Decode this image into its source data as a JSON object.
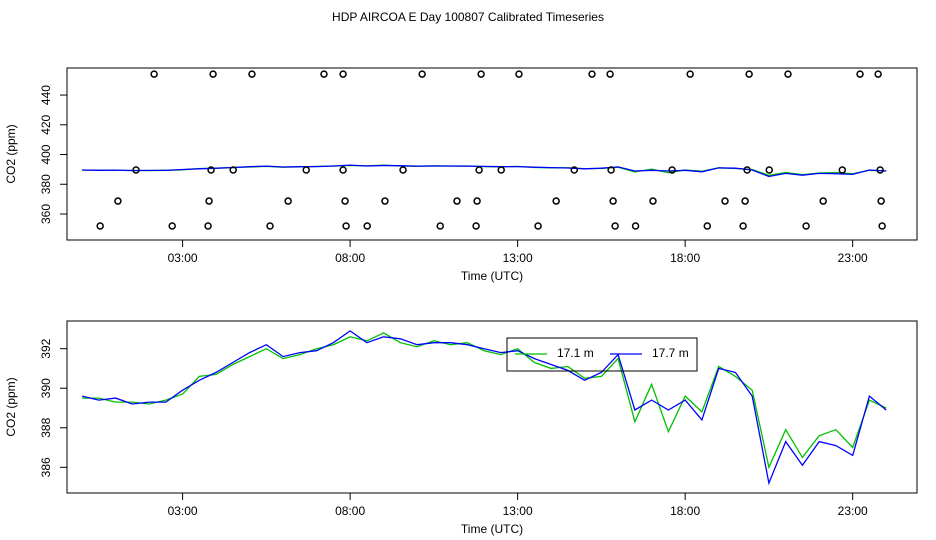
{
  "title": "HDP AIRCOA E  Day 100807  Calibrated Timeseries",
  "chart_data": [
    {
      "type": "line",
      "xlabel": "Time (UTC)",
      "ylabel": "CO2 (ppm)",
      "xlim": [
        -0.45,
        24.92
      ],
      "xticks": [
        {
          "value": 3,
          "label": "03:00"
        },
        {
          "value": 8,
          "label": "08:00"
        },
        {
          "value": 13,
          "label": "13:00"
        },
        {
          "value": 18,
          "label": "18:00"
        },
        {
          "value": 23,
          "label": "23:00"
        }
      ],
      "ylim": [
        342.5,
        458.2
      ],
      "yticks": [
        360,
        380,
        400,
        420,
        440
      ],
      "x": [
        0,
        0.5,
        1,
        1.5,
        2,
        2.5,
        3,
        3.5,
        4,
        4.5,
        5,
        5.5,
        6,
        6.5,
        7,
        7.5,
        8,
        8.5,
        9,
        9.5,
        10,
        10.5,
        11,
        11.5,
        12,
        12.5,
        13,
        13.5,
        14,
        14.5,
        15,
        15.5,
        16,
        16.5,
        17,
        17.5,
        18,
        18.5,
        19,
        19.5,
        20,
        20.5,
        21,
        21.5,
        22,
        22.5,
        23,
        23.5,
        24
      ],
      "series": [
        {
          "color": "#00c000",
          "values": [
            389.5,
            389.5,
            389.3,
            389.3,
            389.2,
            389.4,
            389.7,
            390.6,
            390.7,
            391.2,
            391.6,
            392.0,
            391.5,
            391.7,
            392.0,
            392.2,
            392.6,
            392.4,
            392.8,
            392.3,
            392.1,
            392.4,
            392.2,
            392.3,
            391.9,
            391.7,
            392.0,
            391.3,
            391.0,
            391.1,
            390.5,
            390.6,
            391.5,
            388.3,
            390.2,
            387.8,
            389.6,
            388.8,
            391.1,
            390.6,
            389.9,
            386.0,
            387.9,
            386.5,
            387.6,
            387.9,
            387.0,
            389.4,
            389.0
          ]
        },
        {
          "color": "#0000ff",
          "values": [
            389.6,
            389.4,
            389.5,
            389.2,
            389.3,
            389.3,
            389.9,
            390.4,
            390.8,
            391.3,
            391.8,
            392.2,
            391.6,
            391.8,
            391.9,
            392.3,
            392.9,
            392.3,
            392.6,
            392.5,
            392.2,
            392.3,
            392.3,
            392.2,
            392.0,
            391.8,
            391.9,
            391.5,
            391.2,
            390.9,
            390.4,
            390.8,
            391.7,
            388.9,
            389.4,
            388.9,
            389.4,
            388.4,
            391.0,
            390.8,
            389.6,
            385.2,
            387.3,
            386.1,
            387.3,
            387.1,
            386.6,
            389.6,
            388.9
          ]
        }
      ],
      "points": {
        "color": "#000000",
        "x": [
          2.15,
          3.91,
          5.07,
          7.22,
          7.79,
          10.15,
          11.91,
          13.04,
          15.22,
          15.76,
          18.15,
          19.91,
          21.07,
          23.22,
          23.76,
          1.61,
          3.85,
          4.51,
          6.69,
          7.79,
          9.58,
          11.85,
          12.51,
          14.69,
          15.79,
          17.61,
          19.85,
          20.51,
          22.69,
          23.82,
          1.07,
          3.79,
          6.15,
          7.85,
          9.04,
          11.19,
          11.79,
          14.15,
          15.85,
          17.04,
          19.19,
          19.79,
          22.12,
          23.85,
          0.54,
          2.69,
          3.76,
          5.61,
          7.88,
          8.51,
          10.69,
          11.76,
          13.61,
          15.91,
          16.52,
          18.66,
          19.73,
          21.61,
          23.88
        ],
        "values": [
          454.1,
          454.1,
          454.1,
          454.1,
          454.1,
          454.1,
          454.1,
          454.1,
          454.1,
          454.1,
          454.1,
          454.1,
          454.1,
          454.1,
          454.1,
          389.6,
          389.6,
          389.6,
          389.6,
          389.6,
          389.6,
          389.6,
          389.6,
          389.6,
          389.6,
          389.6,
          389.6,
          389.6,
          389.6,
          389.6,
          368.7,
          368.7,
          368.7,
          368.7,
          368.7,
          368.7,
          368.7,
          368.7,
          368.7,
          368.7,
          368.7,
          368.7,
          368.7,
          368.7,
          351.9,
          351.9,
          351.9,
          351.9,
          351.9,
          351.9,
          351.9,
          351.9,
          351.9,
          351.9,
          351.9,
          351.9,
          351.9,
          351.9,
          351.9
        ]
      }
    },
    {
      "type": "line",
      "xlabel": "Time (UTC)",
      "ylabel": "CO2 (ppm)",
      "xlim": [
        -0.45,
        24.92
      ],
      "xticks": [
        {
          "value": 3,
          "label": "03:00"
        },
        {
          "value": 8,
          "label": "08:00"
        },
        {
          "value": 13,
          "label": "13:00"
        },
        {
          "value": 18,
          "label": "18:00"
        },
        {
          "value": 23,
          "label": "23:00"
        }
      ],
      "ylim": [
        384.7,
        393.4
      ],
      "yticks": [
        386,
        388,
        390,
        392
      ],
      "legend": "top",
      "x": [
        0,
        0.5,
        1,
        1.5,
        2,
        2.5,
        3,
        3.5,
        4,
        4.5,
        5,
        5.5,
        6,
        6.5,
        7,
        7.5,
        8,
        8.5,
        9,
        9.5,
        10,
        10.5,
        11,
        11.5,
        12,
        12.5,
        13,
        13.5,
        14,
        14.5,
        15,
        15.5,
        16,
        16.5,
        17,
        17.5,
        18,
        18.5,
        19,
        19.5,
        20,
        20.5,
        21,
        21.5,
        22,
        22.5,
        23,
        23.5,
        24
      ],
      "series": [
        {
          "name": "17.1 m",
          "color": "#00c000",
          "values": [
            389.5,
            389.5,
            389.3,
            389.3,
            389.2,
            389.4,
            389.7,
            390.6,
            390.7,
            391.2,
            391.6,
            392.0,
            391.5,
            391.7,
            392.0,
            392.2,
            392.6,
            392.4,
            392.8,
            392.3,
            392.1,
            392.4,
            392.2,
            392.3,
            391.9,
            391.7,
            392.0,
            391.3,
            391.0,
            391.1,
            390.5,
            390.6,
            391.5,
            388.3,
            390.2,
            387.8,
            389.6,
            388.8,
            391.1,
            390.6,
            389.9,
            386.0,
            387.9,
            386.5,
            387.6,
            387.9,
            387.0,
            389.4,
            389.0
          ]
        },
        {
          "name": "17.7 m",
          "color": "#0000ff",
          "values": [
            389.6,
            389.4,
            389.5,
            389.2,
            389.3,
            389.3,
            389.9,
            390.4,
            390.8,
            391.3,
            391.8,
            392.2,
            391.6,
            391.8,
            391.9,
            392.3,
            392.9,
            392.3,
            392.6,
            392.5,
            392.2,
            392.3,
            392.3,
            392.2,
            392.0,
            391.8,
            391.9,
            391.5,
            391.2,
            390.9,
            390.4,
            390.8,
            391.7,
            388.9,
            389.4,
            388.9,
            389.4,
            388.4,
            391.0,
            390.8,
            389.6,
            385.2,
            387.3,
            386.1,
            387.3,
            387.1,
            386.6,
            389.6,
            388.9
          ]
        }
      ]
    }
  ]
}
